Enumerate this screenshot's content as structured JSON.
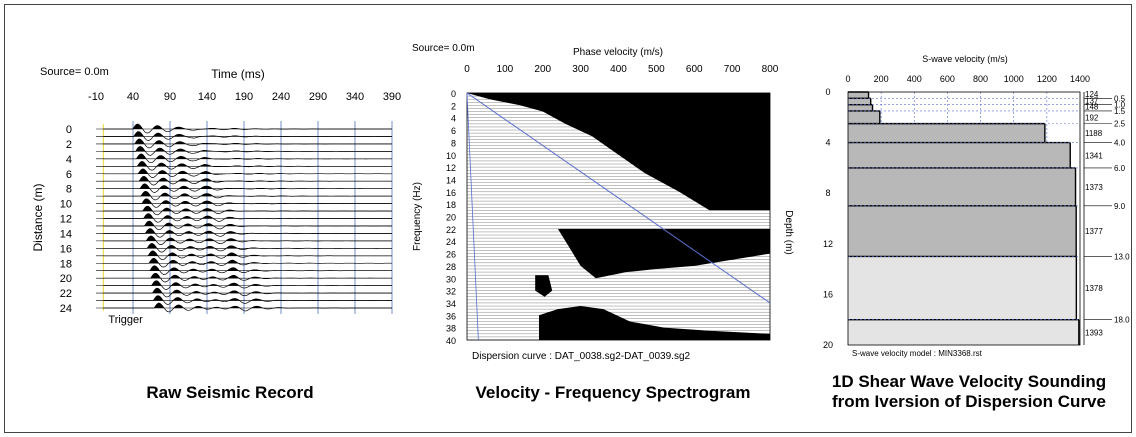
{
  "captions": {
    "panel1": "Raw Seismic Record",
    "panel2": "Velocity - Frequency Spectrogram",
    "panel3_line1": "1D Shear Wave Velocity Sounding",
    "panel3_line2": "from Iversion of Dispersion Curve"
  },
  "chart_data": [
    {
      "type": "line",
      "source_label": "Source=  0.0m",
      "xlabel": "Time (ms)",
      "ylabel": "Distance (m)",
      "x_ticks": [
        -10,
        40,
        90,
        140,
        190,
        240,
        290,
        340,
        390
      ],
      "y_ticks": [
        0,
        2,
        4,
        6,
        8,
        10,
        12,
        14,
        16,
        18,
        20,
        22,
        24
      ],
      "xlim": [
        -10,
        390
      ],
      "ylim": [
        0,
        24
      ],
      "annotation": "Trigger",
      "trigger_time": 0,
      "trace_spacing_m": 1,
      "traces": 25
    },
    {
      "type": "heatmap",
      "source_label": "Source=  0.0m",
      "xlabel": "Phase velocity (m/s)",
      "ylabel": "Frequency (Hz)",
      "x_ticks": [
        0,
        100,
        200,
        300,
        400,
        500,
        600,
        700,
        800
      ],
      "y_ticks": [
        0,
        2,
        4,
        6,
        8,
        10,
        12,
        14,
        16,
        18,
        20,
        22,
        24,
        26,
        28,
        30,
        32,
        34,
        36,
        38,
        40
      ],
      "xlim": [
        0,
        800
      ],
      "ylim": [
        0,
        40
      ],
      "right_label": "Depth (m)",
      "footer": "Dispersion curve : DAT_0038.sg2-DAT_0039.sg2",
      "dispersion_curve_line": [
        [
          0,
          0
        ],
        [
          800,
          34
        ]
      ]
    },
    {
      "type": "bar",
      "xlabel": "S-wave velocity (m/s)",
      "x_ticks": [
        0,
        200,
        400,
        600,
        800,
        1000,
        1200,
        1400
      ],
      "y_ticks": [
        0,
        4,
        8,
        12,
        16,
        20
      ],
      "xlim": [
        0,
        1400
      ],
      "ylim": [
        0,
        20
      ],
      "footer": "S-wave velocity model  :  MIN3368.rst",
      "layers": [
        {
          "top": 0.0,
          "bottom": 0.5,
          "velocity": 124
        },
        {
          "top": 0.5,
          "bottom": 1.0,
          "velocity": 137
        },
        {
          "top": 1.0,
          "bottom": 1.5,
          "velocity": 148
        },
        {
          "top": 1.5,
          "bottom": 2.5,
          "velocity": 192
        },
        {
          "top": 2.5,
          "bottom": 4.0,
          "velocity": 1188
        },
        {
          "top": 4.0,
          "bottom": 6.0,
          "velocity": 1341
        },
        {
          "top": 6.0,
          "bottom": 9.0,
          "velocity": 1373
        },
        {
          "top": 9.0,
          "bottom": 13.0,
          "velocity": 1377
        },
        {
          "top": 13.0,
          "bottom": 18.0,
          "velocity": 1378
        },
        {
          "top": 18.0,
          "bottom": 20.0,
          "velocity": 1393
        }
      ],
      "depth_labels": [
        "0.5",
        "1.0",
        "1.5",
        "2.5",
        "4.0",
        "6.0",
        "9.0",
        "13.0",
        "18.0"
      ]
    }
  ]
}
